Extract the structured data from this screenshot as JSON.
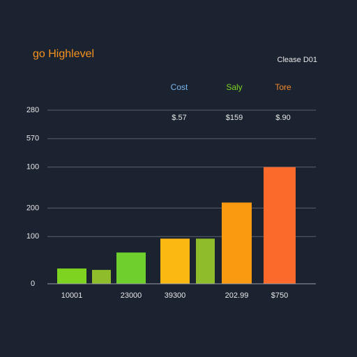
{
  "chart_data": {
    "type": "bar",
    "title": "go Highlevel",
    "subtitle": "Clease D01",
    "legend": [
      {
        "name": "Cost",
        "color": "#7ab8f0",
        "label": "$.57"
      },
      {
        "name": "Saly",
        "color": "#7ed321",
        "label": "$159"
      },
      {
        "name": "Tore",
        "color": "#f5892a",
        "label": "$.90"
      }
    ],
    "categories": [
      "10001",
      null,
      "23000",
      "39300",
      null,
      "202.99",
      "$750"
    ],
    "values": [
      22,
      20,
      45,
      65,
      65,
      117,
      168
    ],
    "colors": [
      "#7ed321",
      "#8fbc2a",
      "#6fcf2c",
      "#fbb812",
      "#8fbc2a",
      "#f99a10",
      "#fb6a2a"
    ],
    "ylim": [
      0,
      250
    ],
    "yticks": [
      {
        "value": 250,
        "label": "280"
      },
      {
        "value": 209,
        "label": "570"
      },
      {
        "value": 168,
        "label": "100"
      },
      {
        "value": 109,
        "label": "200"
      },
      {
        "value": 68,
        "label": "100"
      },
      0
    ],
    "grid": true
  }
}
